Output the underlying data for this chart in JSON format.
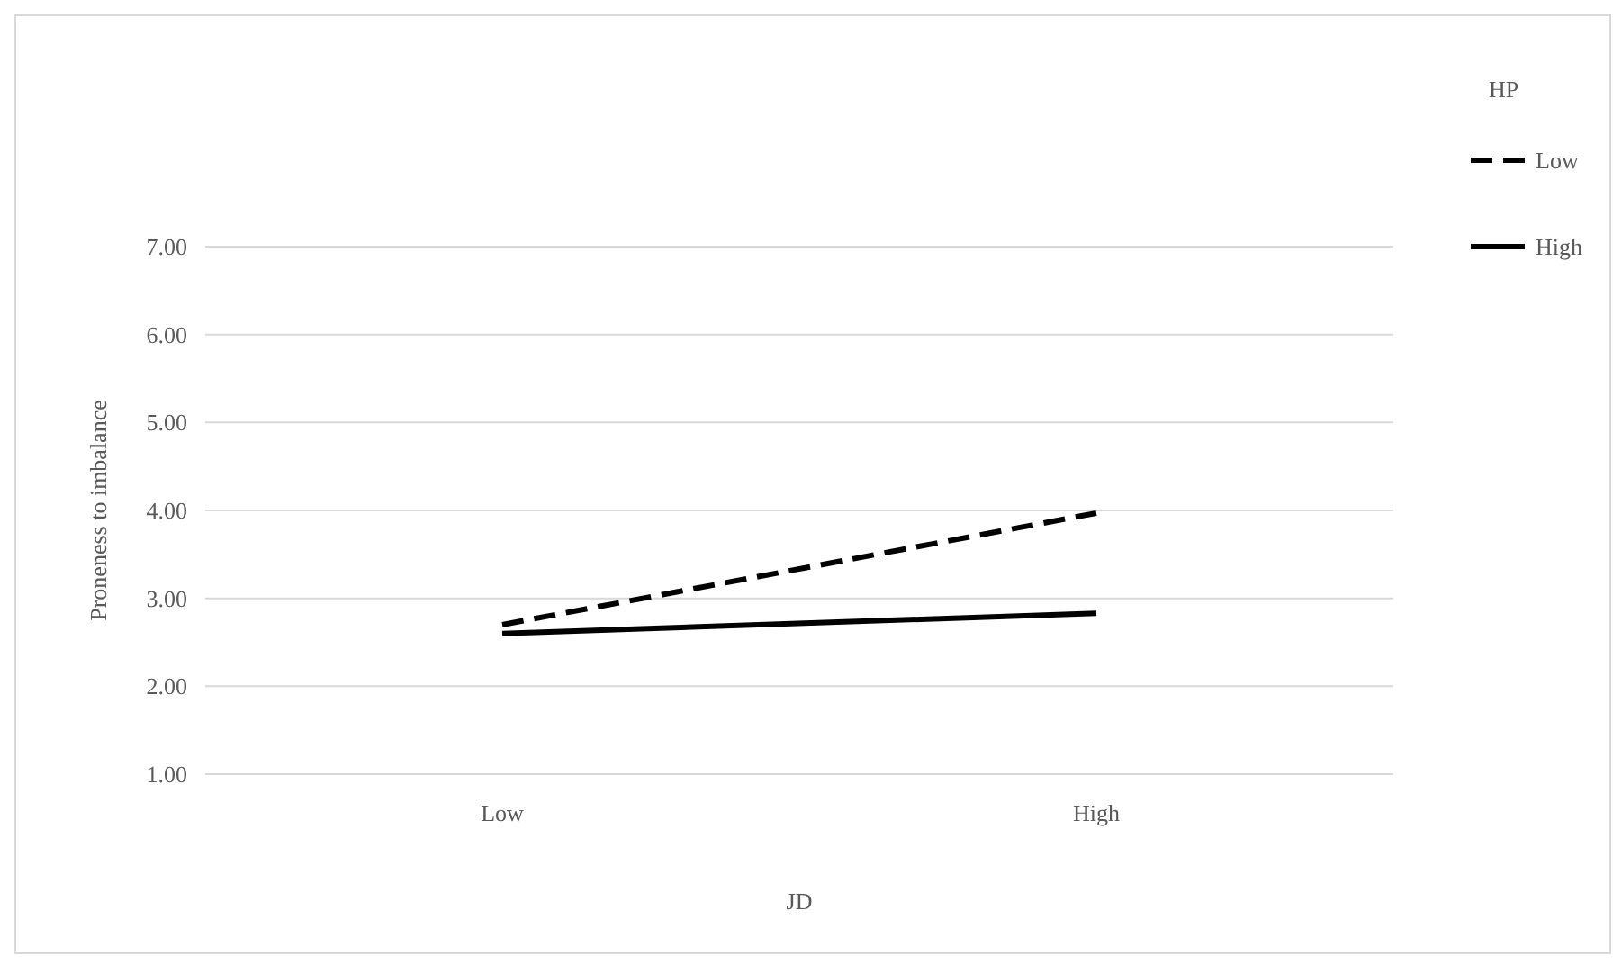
{
  "chart_data": {
    "type": "line",
    "xlabel": "JD",
    "ylabel": "Proneness to imbalance",
    "legend_title": "HP",
    "categories": [
      "Low",
      "High"
    ],
    "series": [
      {
        "name": "Low",
        "color": "#000000",
        "line_style": "dashed",
        "values": [
          2.7,
          3.97
        ]
      },
      {
        "name": "High",
        "color": "#000000",
        "line_style": "solid",
        "values": [
          2.6,
          2.83
        ]
      }
    ],
    "ylim": [
      1,
      7
    ],
    "yticks": [
      {
        "value": 1,
        "label": "1.00"
      },
      {
        "value": 2,
        "label": "2.00"
      },
      {
        "value": 3,
        "label": "3.00"
      },
      {
        "value": 4,
        "label": "4.00"
      },
      {
        "value": 5,
        "label": "5.00"
      },
      {
        "value": 6,
        "label": "6.00"
      },
      {
        "value": 7,
        "label": "7.00"
      }
    ],
    "grid": "y",
    "legend": "top right",
    "marker": "none"
  }
}
